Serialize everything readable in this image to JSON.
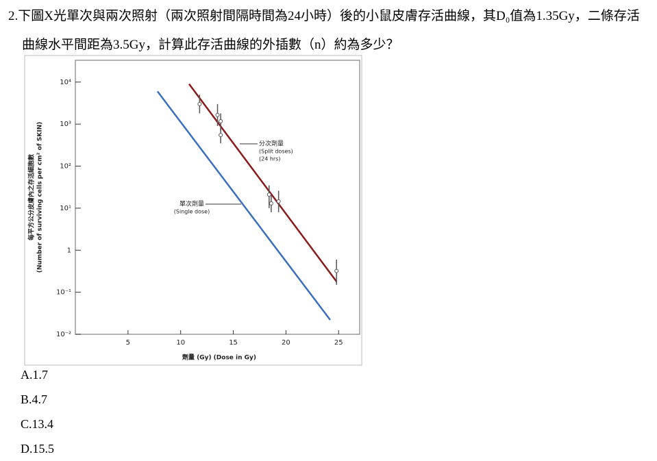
{
  "question": {
    "lines": [
      "2.下圖X光單次與兩次照射（兩次照射間隔時間為24小時）後的小鼠皮膚存活曲線，其D₀值為1.35Gy，二條存活",
      "曲線水平間距為3.5Gy，計算此存活曲線的外插數（n）約為多少？"
    ]
  },
  "chart_data": {
    "type": "line",
    "y_label": [
      "每平方公分皮膚內之存活細胞數",
      "(Number of surviving cells per cm² of SKIN)"
    ],
    "x_label": "劑量 (Gy) (Dose in Gy)",
    "log_y": true,
    "xlim": [
      0,
      27
    ],
    "xticks": [
      5,
      10,
      15,
      20,
      25
    ],
    "ylim": [
      0.01,
      33000
    ],
    "yticks": [
      {
        "value": 10000,
        "label": "10⁴"
      },
      {
        "value": 1000,
        "label": "10³"
      },
      {
        "value": 100,
        "label": "10²"
      },
      {
        "value": 10,
        "label": "10¹"
      },
      1,
      {
        "value": 0.1,
        "label": "10⁻¹"
      },
      {
        "value": 0.01,
        "label": "10⁻²"
      }
    ],
    "series": [
      {
        "name": "分次劑量",
        "label_lines": [
          "(Split doses)",
          "(24 hrs)"
        ],
        "color": "#8b1a1a",
        "x": [
          10.8,
          24.8
        ],
        "values": [
          9000,
          0.18
        ]
      },
      {
        "name": "單次劑量",
        "label_lines": [
          "(Single dose)"
        ],
        "color": "#3a6fc0",
        "x": [
          7.8,
          24.2
        ],
        "values": [
          6000,
          0.022
        ]
      }
    ],
    "points": {
      "x": [
        11.8,
        13.5,
        13.8,
        13.8,
        18.4,
        18.6,
        19.3,
        24.8
      ],
      "values": [
        3000,
        1650,
        1170,
        550,
        21,
        13,
        14.5,
        0.32
      ],
      "lower": [
        1800,
        900,
        700,
        350,
        10,
        8,
        8,
        0.15
      ],
      "upper": [
        5000,
        3000,
        1800,
        800,
        35,
        20,
        26,
        0.6
      ]
    }
  },
  "options": [
    "A.1.7",
    "B.4.7",
    "C.13.4",
    "D.15.5"
  ]
}
